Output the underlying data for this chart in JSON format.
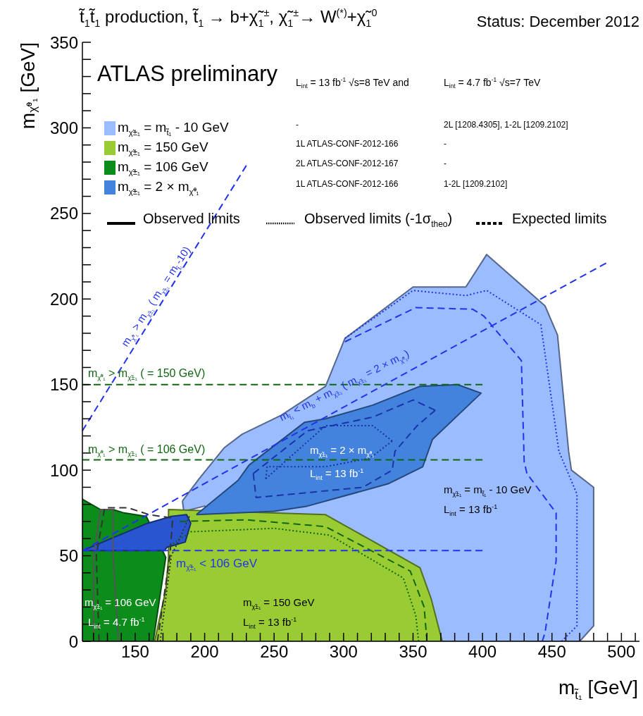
{
  "chart_data": {
    "type": "area",
    "title": "t̃$_{1}$t̃$_{1}$ production, t̃$_{1}$ → b+χ̃$_{1}$$^{±}$, χ̃$_{1}$$^{±}$→ W$^{(*)}$+χ̃$_{1}$$^{0}$",
    "subtitle": "Status: December 2012",
    "xlabel": "m$_{t̃₁}$ [GeV]",
    "ylabel": "m$_{χ̃⁰₁}$ [GeV]",
    "xlim": [
      112,
      513
    ],
    "ylim": [
      0,
      350
    ],
    "xticks": [
      {
        "value": 120,
        "label": null
      },
      {
        "value": 130,
        "label": null
      },
      {
        "value": 140,
        "label": null
      },
      150,
      {
        "value": 160,
        "label": null
      },
      {
        "value": 170,
        "label": null
      },
      {
        "value": 180,
        "label": null
      },
      {
        "value": 190,
        "label": null
      },
      200,
      {
        "value": 210,
        "label": null
      },
      {
        "value": 220,
        "label": null
      },
      {
        "value": 230,
        "label": null
      },
      {
        "value": 240,
        "label": null
      },
      250,
      {
        "value": 260,
        "label": null
      },
      {
        "value": 270,
        "label": null
      },
      {
        "value": 280,
        "label": null
      },
      {
        "value": 290,
        "label": null
      },
      300,
      {
        "value": 310,
        "label": null
      },
      {
        "value": 320,
        "label": null
      },
      {
        "value": 330,
        "label": null
      },
      {
        "value": 340,
        "label": null
      },
      350,
      {
        "value": 360,
        "label": null
      },
      {
        "value": 370,
        "label": null
      },
      {
        "value": 380,
        "label": null
      },
      {
        "value": 390,
        "label": null
      },
      400,
      {
        "value": 410,
        "label": null
      },
      {
        "value": 420,
        "label": null
      },
      {
        "value": 430,
        "label": null
      },
      {
        "value": 440,
        "label": null
      },
      450,
      {
        "value": 460,
        "label": null
      },
      {
        "value": 470,
        "label": null
      },
      {
        "value": 480,
        "label": null
      },
      {
        "value": 490,
        "label": null
      },
      500,
      {
        "value": 510,
        "label": null
      }
    ],
    "yticks": [
      0,
      {
        "value": 10,
        "label": null
      },
      {
        "value": 20,
        "label": null
      },
      {
        "value": 30,
        "label": null
      },
      {
        "value": 40,
        "label": null
      },
      50,
      {
        "value": 60,
        "label": null
      },
      {
        "value": 70,
        "label": null
      },
      {
        "value": 80,
        "label": null
      },
      {
        "value": 90,
        "label": null
      },
      100,
      {
        "value": 110,
        "label": null
      },
      {
        "value": 120,
        "label": null
      },
      {
        "value": 130,
        "label": null
      },
      {
        "value": 140,
        "label": null
      },
      150,
      {
        "value": 160,
        "label": null
      },
      {
        "value": 170,
        "label": null
      },
      {
        "value": 180,
        "label": null
      },
      {
        "value": 190,
        "label": null
      },
      200,
      {
        "value": 210,
        "label": null
      },
      {
        "value": 220,
        "label": null
      },
      {
        "value": 230,
        "label": null
      },
      {
        "value": 240,
        "label": null
      },
      250,
      {
        "value": 260,
        "label": null
      },
      {
        "value": 270,
        "label": null
      },
      {
        "value": 280,
        "label": null
      },
      {
        "value": 290,
        "label": null
      },
      300,
      {
        "value": 310,
        "label": null
      },
      {
        "value": 320,
        "label": null
      },
      {
        "value": 330,
        "label": null
      },
      {
        "value": 340,
        "label": null
      },
      350
    ],
    "legend": "top left",
    "series": [
      {
        "name": "m$_{χ̃±₁}$ = m$_{t̃₁}$ - 10 GeV",
        "color": "#9bbcff",
        "x": [
          184,
          196,
          214,
          227,
          255,
          287,
          301,
          350,
          388,
          403,
          445,
          454,
          462,
          464,
          480,
          480,
          470,
          371,
          200,
          185
        ],
        "values": [
          82,
          95,
          113,
          121,
          132,
          149,
          177,
          207,
          207,
          226,
          196,
          179,
          111,
          100,
          90,
          9,
          0,
          0,
          79,
          76
        ]
      },
      {
        "name": "m$_{χ̃±₁}$ = 150 GeV",
        "color": "#99cc33",
        "x": [
          164,
          172,
          174,
          174,
          287,
          355,
          363,
          371
        ],
        "values": [
          0,
          30,
          49,
          77,
          74,
          43,
          25,
          0
        ]
      },
      {
        "name": "m$_{χ̃±₁}$ = 106 GeV",
        "color": "#0b8c1b",
        "x": [
          112,
          112,
          125,
          134,
          142,
          158,
          172,
          163
        ],
        "values": [
          0,
          83,
          77,
          77,
          75,
          73,
          49,
          0
        ]
      },
      {
        "name": "m$_{χ̃±₁}$ = 2 × m$_{χ̃⁰₁}$",
        "color": "#4483dd",
        "x": [
          194,
          224,
          232,
          272,
          287,
          321,
          355,
          382,
          399,
          364,
          357,
          332,
          274,
          250
        ],
        "values": [
          74,
          94,
          103,
          128,
          130,
          138,
          149,
          150,
          145,
          118,
          102,
          92,
          79,
          76
        ]
      },
      {
        "color": "#2a55d0",
        "x": [
          112,
          159,
          176,
          187,
          190,
          186,
          173,
          171
        ],
        "values": [
          53,
          69,
          73,
          74,
          69,
          58,
          55,
          53
        ]
      },
      {
        "type": "line",
        "color": "#2233ee",
        "line_style": "dashed",
        "x": [
          301,
          352,
          393,
          401,
          428,
          430,
          432,
          453,
          453,
          445,
          443
        ],
        "values": [
          175,
          195,
          194,
          190,
          164,
          105,
          98,
          75,
          47,
          5,
          0
        ]
      },
      {
        "type": "line",
        "color": "#2233ee",
        "line_style": "dotted",
        "x": [
          301,
          350,
          388,
          403,
          442,
          455,
          468,
          468,
          457
        ],
        "values": [
          177,
          205,
          202,
          205,
          185,
          111,
          86,
          9,
          0
        ]
      },
      {
        "type": "line",
        "color": "#116611",
        "line_style": "dashed",
        "x": [
          182,
          230,
          287,
          348,
          358,
          360
        ],
        "values": [
          70,
          71,
          67,
          41,
          20,
          0
        ]
      },
      {
        "type": "line",
        "color": "#116611",
        "line_style": "dotted",
        "x": [
          175,
          190,
          250,
          290,
          343,
          352,
          354
        ],
        "values": [
          56,
          64,
          66,
          62,
          37,
          15,
          0
        ]
      },
      {
        "type": "line",
        "color": "#1a33aa",
        "line_style": "dashed",
        "x": [
          235,
          274,
          321,
          350,
          366
        ],
        "values": [
          98,
          123,
          131,
          141,
          135
        ]
      },
      {
        "type": "line",
        "color": "#1a33aa",
        "line_style": "dashed",
        "x": [
          366,
          353,
          337,
          335,
          314,
          237,
          235
        ],
        "values": [
          135,
          126,
          111,
          100,
          90,
          84,
          98
        ]
      },
      {
        "type": "line",
        "color": "#1a33aa",
        "line_style": "dotted",
        "x": [
          244,
          287,
          321,
          335
        ],
        "values": [
          95,
          126,
          126,
          117
        ]
      },
      {
        "type": "line",
        "color": "#1a33aa",
        "line_style": "dotted",
        "x": [
          335,
          319,
          287,
          245,
          244
        ],
        "values": [
          117,
          107,
          102,
          102,
          95
        ]
      },
      {
        "type": "line",
        "color": "#555555",
        "line_style": "solid",
        "x": [
          120,
          120,
          125,
          134,
          134,
          138
        ],
        "values": [
          0,
          49,
          77,
          77,
          51,
          0
        ]
      },
      {
        "type": "line",
        "color": "#333333",
        "line_style": "dashed",
        "x": [
          166,
          175,
          177,
          160,
          145,
          128,
          122,
          124
        ],
        "values": [
          0,
          50,
          72,
          74,
          78,
          78,
          50,
          0
        ]
      },
      {
        "type": "line",
        "color": "#333333",
        "line_style": "dotted",
        "x": [
          168,
          176,
          182,
          189
        ],
        "values": [
          0,
          50,
          60,
          73
        ]
      },
      {
        "type": "line",
        "color": "#2233ee",
        "line_style": "dashed",
        "x": [
          112,
          230
        ],
        "values": [
          123,
          278
        ]
      },
      {
        "type": "line",
        "color": "#2233ee",
        "line_style": "dashed",
        "x": [
          112,
          489
        ],
        "values": [
          53,
          221
        ]
      },
      {
        "type": "line",
        "color": "#116611",
        "line_style": "dashed",
        "x": [
          112,
          400
        ],
        "values": [
          150,
          150
        ]
      },
      {
        "type": "line",
        "color": "#116611",
        "line_style": "dashed",
        "x": [
          112,
          400
        ],
        "values": [
          106,
          106
        ]
      },
      {
        "type": "line",
        "color": "#2233ee",
        "line_style": "dashed",
        "x": [
          112,
          400
        ],
        "values": [
          53,
          53
        ]
      }
    ],
    "annotations": [
      "ATLAS preliminary",
      "L$_{int}$ = 13 fb$^{-1}$ √s=8 TeV and",
      "L$_{int}$ = 4.7 fb$^{-1}$ √s=7 TeV",
      "-",
      "2L [1208.4305], 1-2L [1209.2102]",
      "1L ATLAS-CONF-2012-166",
      "-",
      "2L ATLAS-CONF-2012-167",
      "-",
      "1L ATLAS-CONF-2012-166",
      "1-2L [1209.2102]",
      "Observed limits",
      "Observed limits (-1σ$_{theo}$)",
      "Expected limits",
      "m$_{χ̃⁰₁}$ > m$_{χ̃±₁}$ ( m$_{χ̃±₁}$ = m$_{t̃₁}$-10)",
      "m$_{χ̃⁰₁}$ > m$_{χ̃±₁}$ ( = 150 GeV)",
      "m$_{χ̃⁰₁}$ > m$_{χ̃±₁}$ ( = 106 GeV)",
      "m$_{t̃₁}$ < m$_{b}$ + m$_{χ̃±₁}$ ( m$_{χ̃±₁}$ = 2 × m$_{χ̃⁰₁}$)",
      "m$_{χ̃±₁}$ = 2 × m$_{χ̃⁰₁}$",
      "L$_{int}$ = 13 fb$^{-1}$",
      "m$_{χ̃±₁}$ = m$_{t̃₁}$ - 10 GeV",
      "L$_{int}$ = 13 fb$^{-1}$",
      "m$_{χ̃±₁}$ < 106 GeV",
      "m$_{χ̃±₁}$ = 106 GeV",
      "L$_{int}$ = 4.7 fb$^{-1}$",
      "m$_{χ̃±₁}$ = 150 GeV",
      "L$_{int}$ = 13 fb$^{-1}$"
    ]
  }
}
